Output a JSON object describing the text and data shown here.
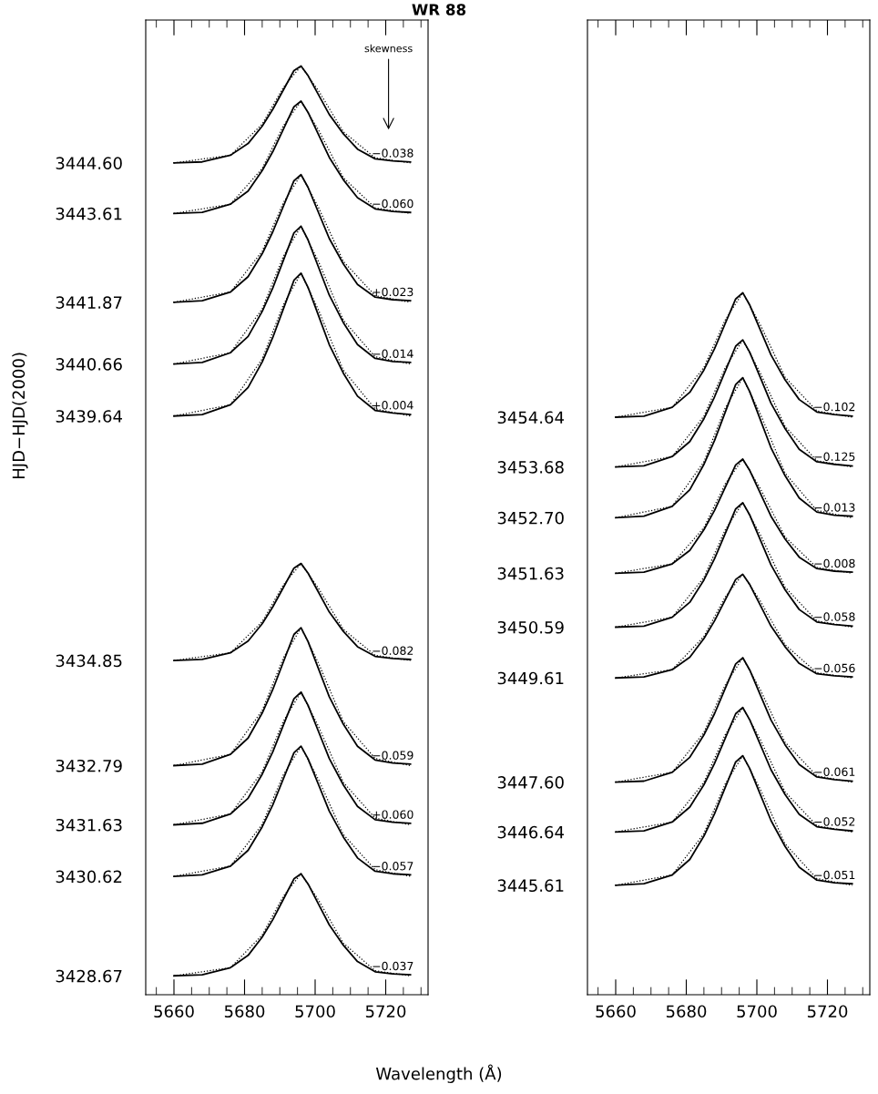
{
  "chart_data": [
    {
      "type": "line",
      "title": "WR 88",
      "xlabel": "Wavelength (Å)",
      "ylabel": "HJD−HJD(2000)",
      "line_style": "solid",
      "grid": false,
      "xlim": [
        5652,
        5732
      ],
      "xticks": [
        5660,
        5680,
        5700,
        5720
      ],
      "ylim": [
        3428.3,
        3447.4
      ],
      "yticks": [
        {
          "value": 3444.6,
          "label": "3444.60"
        },
        3443.61,
        3441.87,
        3440.66,
        3439.64,
        3434.85,
        3432.79,
        3431.63,
        3430.62,
        3428.67
      ],
      "x": [
        5660,
        5668,
        5676,
        5681,
        5685,
        5688,
        5691,
        5694,
        5696,
        5698,
        5701,
        5704,
        5708,
        5712,
        5717,
        5722,
        5727
      ],
      "series": [
        {
          "color": "#000000",
          "values": [
            3444.6,
            3444.62,
            3444.75,
            3444.98,
            3445.32,
            3445.65,
            3446.03,
            3446.41,
            3446.5,
            3446.31,
            3445.93,
            3445.55,
            3445.17,
            3444.87,
            3444.68,
            3444.64,
            3444.62
          ]
        },
        {
          "color": "#000000",
          "values": [
            3443.61,
            3443.63,
            3443.79,
            3444.05,
            3444.45,
            3444.82,
            3445.26,
            3445.7,
            3445.81,
            3445.59,
            3445.15,
            3444.71,
            3444.27,
            3443.92,
            3443.7,
            3443.65,
            3443.63
          ]
        },
        {
          "color": "#000000",
          "values": [
            3441.87,
            3441.9,
            3442.07,
            3442.37,
            3442.82,
            3443.25,
            3443.75,
            3444.25,
            3444.37,
            3444.12,
            3443.62,
            3443.12,
            3442.62,
            3442.22,
            3441.97,
            3441.92,
            3441.9
          ]
        },
        {
          "color": "#000000",
          "values": [
            3440.66,
            3440.69,
            3440.88,
            3441.2,
            3441.69,
            3442.15,
            3442.69,
            3443.23,
            3443.36,
            3443.09,
            3442.55,
            3442.01,
            3441.47,
            3441.04,
            3440.77,
            3440.71,
            3440.69
          ]
        },
        {
          "color": "#000000",
          "values": [
            3439.64,
            3439.67,
            3439.86,
            3440.2,
            3440.7,
            3441.18,
            3441.74,
            3442.3,
            3442.44,
            3442.16,
            3441.6,
            3441.04,
            3440.48,
            3440.03,
            3439.75,
            3439.7,
            3439.67
          ]
        },
        {
          "color": "#000000",
          "values": [
            3434.85,
            3434.87,
            3435.0,
            3435.23,
            3435.57,
            3435.9,
            3436.28,
            3436.66,
            3436.75,
            3436.56,
            3436.18,
            3435.8,
            3435.42,
            3435.12,
            3434.93,
            3434.89,
            3434.87
          ]
        },
        {
          "color": "#000000",
          "values": [
            3432.79,
            3432.82,
            3433.01,
            3433.33,
            3433.82,
            3434.28,
            3434.82,
            3435.36,
            3435.49,
            3435.22,
            3434.68,
            3434.14,
            3433.6,
            3433.17,
            3432.9,
            3432.84,
            3432.82
          ]
        },
        {
          "color": "#000000",
          "values": [
            3431.63,
            3431.66,
            3431.84,
            3432.15,
            3432.62,
            3433.06,
            3433.58,
            3434.1,
            3434.23,
            3433.97,
            3433.45,
            3432.93,
            3432.41,
            3431.99,
            3431.73,
            3431.68,
            3431.66
          ]
        },
        {
          "color": "#000000",
          "values": [
            3430.62,
            3430.65,
            3430.82,
            3431.13,
            3431.59,
            3432.02,
            3432.53,
            3433.04,
            3433.17,
            3432.92,
            3432.41,
            3431.9,
            3431.39,
            3430.98,
            3430.72,
            3430.67,
            3430.65
          ]
        },
        {
          "color": "#000000",
          "values": [
            3428.67,
            3428.69,
            3428.83,
            3429.07,
            3429.43,
            3429.77,
            3430.17,
            3430.57,
            3430.67,
            3430.47,
            3430.07,
            3429.67,
            3429.27,
            3428.95,
            3428.75,
            3428.71,
            3428.69
          ]
        },
        {
          "color": "#000000",
          "line_style": "dotted",
          "x": [
            5660,
            5676,
            5685,
            5691,
            5696,
            5701,
            5708,
            5717,
            5727
          ],
          "values": [
            3444.6,
            3444.75,
            3445.36,
            3446.08,
            3446.5,
            3446.01,
            3445.21,
            3444.7,
            3444.6
          ]
        },
        {
          "color": "#000000",
          "line_style": "dotted",
          "x": [
            5660,
            5676,
            5685,
            5691,
            5696,
            5701,
            5708,
            5717,
            5727
          ],
          "values": [
            3443.61,
            3443.79,
            3444.49,
            3445.33,
            3445.81,
            3445.24,
            3444.31,
            3443.72,
            3443.61
          ]
        },
        {
          "color": "#000000",
          "line_style": "dotted",
          "x": [
            5660,
            5676,
            5685,
            5691,
            5696,
            5701,
            5708,
            5717,
            5727
          ],
          "values": [
            3441.87,
            3442.07,
            3442.87,
            3443.82,
            3444.37,
            3443.72,
            3442.67,
            3442.0,
            3441.87
          ]
        },
        {
          "color": "#000000",
          "line_style": "dotted",
          "x": [
            5660,
            5676,
            5685,
            5691,
            5696,
            5701,
            5708,
            5717,
            5727
          ],
          "values": [
            3440.66,
            3440.88,
            3441.74,
            3442.77,
            3443.36,
            3442.66,
            3441.52,
            3440.8,
            3440.66
          ]
        },
        {
          "color": "#000000",
          "line_style": "dotted",
          "x": [
            5660,
            5676,
            5685,
            5691,
            5696,
            5701,
            5708,
            5717,
            5727
          ],
          "values": [
            3439.64,
            3439.86,
            3440.76,
            3441.82,
            3442.44,
            3441.71,
            3440.54,
            3439.78,
            3439.64
          ]
        },
        {
          "color": "#000000",
          "line_style": "dotted",
          "x": [
            5660,
            5676,
            5685,
            5691,
            5696,
            5701,
            5708,
            5717,
            5727
          ],
          "values": [
            3434.85,
            3435.0,
            3435.61,
            3436.33,
            3436.75,
            3436.26,
            3435.46,
            3434.95,
            3434.85
          ]
        },
        {
          "color": "#000000",
          "line_style": "dotted",
          "x": [
            5660,
            5676,
            5685,
            5691,
            5696,
            5701,
            5708,
            5717,
            5727
          ],
          "values": [
            3432.79,
            3433.01,
            3433.87,
            3434.9,
            3435.49,
            3434.79,
            3433.65,
            3432.93,
            3432.79
          ]
        },
        {
          "color": "#000000",
          "line_style": "dotted",
          "x": [
            5660,
            5676,
            5685,
            5691,
            5696,
            5701,
            5708,
            5717,
            5727
          ],
          "values": [
            3431.63,
            3431.84,
            3432.67,
            3433.66,
            3434.23,
            3433.55,
            3432.46,
            3431.76,
            3431.63
          ]
        },
        {
          "color": "#000000",
          "line_style": "dotted",
          "x": [
            5660,
            5676,
            5685,
            5691,
            5696,
            5701,
            5708,
            5717,
            5727
          ],
          "values": [
            3430.62,
            3430.82,
            3431.64,
            3432.61,
            3433.17,
            3432.51,
            3431.44,
            3430.75,
            3430.62
          ]
        },
        {
          "color": "#000000",
          "line_style": "dotted",
          "x": [
            5660,
            5676,
            5685,
            5691,
            5696,
            5701,
            5708,
            5717,
            5727
          ],
          "values": [
            3428.67,
            3428.83,
            3429.47,
            3430.23,
            3430.67,
            3430.15,
            3429.31,
            3428.77,
            3428.67
          ]
        }
      ],
      "annotations": [
        "skewness",
        "−0.038",
        "−0.060",
        "+0.023",
        "−0.014",
        "+0.004",
        "−0.082",
        "−0.059",
        "+0.060",
        "−0.057",
        "−0.037"
      ]
    },
    {
      "type": "line",
      "line_style": "solid",
      "grid": false,
      "xlim": [
        5652,
        5732
      ],
      "xticks": [
        5660,
        5680,
        5700,
        5720
      ],
      "ylim": [
        3443.5,
        3462.3
      ],
      "yticks": [
        3454.64,
        3453.68,
        {
          "value": 3452.7,
          "label": "3452.70"
        },
        3451.63,
        3450.59,
        3449.61,
        {
          "value": 3447.6,
          "label": "3447.60"
        },
        3446.64,
        3445.61
      ],
      "x": [
        5660,
        5668,
        5676,
        5681,
        5685,
        5688,
        5691,
        5694,
        5696,
        5698,
        5701,
        5704,
        5708,
        5712,
        5717,
        5722,
        5727
      ],
      "series": [
        {
          "color": "#000000",
          "values": [
            3454.64,
            3454.66,
            3454.83,
            3455.12,
            3455.55,
            3455.96,
            3456.44,
            3456.92,
            3457.04,
            3456.8,
            3456.32,
            3455.84,
            3455.36,
            3454.98,
            3454.74,
            3454.69,
            3454.66
          ]
        },
        {
          "color": "#000000",
          "values": [
            3453.68,
            3453.7,
            3453.88,
            3454.17,
            3454.61,
            3455.03,
            3455.52,
            3456.01,
            3456.13,
            3455.89,
            3455.4,
            3454.91,
            3454.42,
            3454.02,
            3453.78,
            3453.73,
            3453.7
          ]
        },
        {
          "color": "#000000",
          "values": [
            3452.7,
            3452.73,
            3452.92,
            3453.24,
            3453.73,
            3454.19,
            3454.73,
            3455.27,
            3455.4,
            3455.13,
            3454.59,
            3454.05,
            3453.51,
            3453.08,
            3452.81,
            3452.75,
            3452.73
          ]
        },
        {
          "color": "#000000",
          "values": [
            3451.63,
            3451.65,
            3451.81,
            3452.07,
            3452.47,
            3452.84,
            3453.28,
            3453.72,
            3453.83,
            3453.61,
            3453.17,
            3452.73,
            3452.29,
            3451.94,
            3451.72,
            3451.67,
            3451.65
          ]
        },
        {
          "color": "#000000",
          "values": [
            3450.59,
            3450.61,
            3450.78,
            3451.07,
            3451.5,
            3451.91,
            3452.39,
            3452.87,
            3452.99,
            3452.75,
            3452.27,
            3451.79,
            3451.31,
            3450.93,
            3450.69,
            3450.64,
            3450.61
          ]
        },
        {
          "color": "#000000",
          "values": [
            3449.61,
            3449.63,
            3449.77,
            3450.01,
            3450.37,
            3450.71,
            3451.11,
            3451.51,
            3451.61,
            3451.41,
            3451.01,
            3450.61,
            3450.21,
            3449.89,
            3449.69,
            3449.65,
            3449.63
          ]
        },
        {
          "color": "#000000",
          "values": [
            3447.6,
            3447.62,
            3447.79,
            3448.08,
            3448.51,
            3448.92,
            3449.4,
            3449.88,
            3450.0,
            3449.76,
            3449.28,
            3448.8,
            3448.32,
            3447.94,
            3447.7,
            3447.65,
            3447.62
          ]
        },
        {
          "color": "#000000",
          "values": [
            3446.64,
            3446.66,
            3446.83,
            3447.12,
            3447.55,
            3447.96,
            3448.44,
            3448.92,
            3449.04,
            3448.8,
            3448.32,
            3447.84,
            3447.36,
            3446.98,
            3446.74,
            3446.69,
            3446.66
          ]
        },
        {
          "color": "#000000",
          "values": [
            3445.61,
            3445.64,
            3445.81,
            3446.11,
            3446.56,
            3446.99,
            3447.49,
            3447.99,
            3448.11,
            3447.86,
            3447.36,
            3446.86,
            3446.36,
            3445.96,
            3445.71,
            3445.66,
            3445.64
          ]
        },
        {
          "color": "#000000",
          "line_style": "dotted",
          "x": [
            5660,
            5676,
            5685,
            5691,
            5696,
            5701,
            5708,
            5717,
            5727
          ],
          "values": [
            3454.64,
            3454.83,
            3455.6,
            3456.51,
            3457.04,
            3456.42,
            3455.41,
            3454.76,
            3454.64
          ]
        },
        {
          "color": "#000000",
          "line_style": "dotted",
          "x": [
            5660,
            5676,
            5685,
            5691,
            5696,
            5701,
            5708,
            5717,
            5727
          ],
          "values": [
            3453.68,
            3453.88,
            3454.66,
            3455.59,
            3456.13,
            3455.49,
            3454.46,
            3453.8,
            3453.68
          ]
        },
        {
          "color": "#000000",
          "line_style": "dotted",
          "x": [
            5660,
            5676,
            5685,
            5691,
            5696,
            5701,
            5708,
            5717,
            5727
          ],
          "values": [
            3452.7,
            3452.92,
            3453.78,
            3454.81,
            3455.4,
            3454.7,
            3453.56,
            3452.84,
            3452.7
          ]
        },
        {
          "color": "#000000",
          "line_style": "dotted",
          "x": [
            5660,
            5676,
            5685,
            5691,
            5696,
            5701,
            5708,
            5717,
            5727
          ],
          "values": [
            3451.63,
            3451.81,
            3452.51,
            3453.35,
            3453.83,
            3453.26,
            3452.33,
            3451.74,
            3451.63
          ]
        },
        {
          "color": "#000000",
          "line_style": "dotted",
          "x": [
            5660,
            5676,
            5685,
            5691,
            5696,
            5701,
            5708,
            5717,
            5727
          ],
          "values": [
            3450.59,
            3450.78,
            3451.55,
            3452.46,
            3452.99,
            3452.37,
            3451.36,
            3450.71,
            3450.59
          ]
        },
        {
          "color": "#000000",
          "line_style": "dotted",
          "x": [
            5660,
            5676,
            5685,
            5691,
            5696,
            5701,
            5708,
            5717,
            5727
          ],
          "values": [
            3449.61,
            3449.77,
            3450.41,
            3451.17,
            3451.61,
            3451.09,
            3450.25,
            3449.71,
            3449.61
          ]
        },
        {
          "color": "#000000",
          "line_style": "dotted",
          "x": [
            5660,
            5676,
            5685,
            5691,
            5696,
            5701,
            5708,
            5717,
            5727
          ],
          "values": [
            3447.6,
            3447.79,
            3448.56,
            3449.47,
            3450.0,
            3449.38,
            3448.37,
            3447.72,
            3447.6
          ]
        },
        {
          "color": "#000000",
          "line_style": "dotted",
          "x": [
            5660,
            5676,
            5685,
            5691,
            5696,
            5701,
            5708,
            5717,
            5727
          ],
          "values": [
            3446.64,
            3446.83,
            3447.6,
            3448.51,
            3449.04,
            3448.42,
            3447.41,
            3446.76,
            3446.64
          ]
        },
        {
          "color": "#000000",
          "line_style": "dotted",
          "x": [
            5660,
            5676,
            5685,
            5691,
            5696,
            5701,
            5708,
            5717,
            5727
          ],
          "values": [
            3445.61,
            3445.81,
            3446.61,
            3447.56,
            3448.11,
            3447.46,
            3446.41,
            3445.74,
            3445.61
          ]
        }
      ],
      "annotations": [
        "−0.102",
        "−0.125",
        "−0.013",
        "−0.008",
        "−0.058",
        "−0.056",
        "−0.061",
        "−0.052",
        "−0.051"
      ]
    }
  ]
}
